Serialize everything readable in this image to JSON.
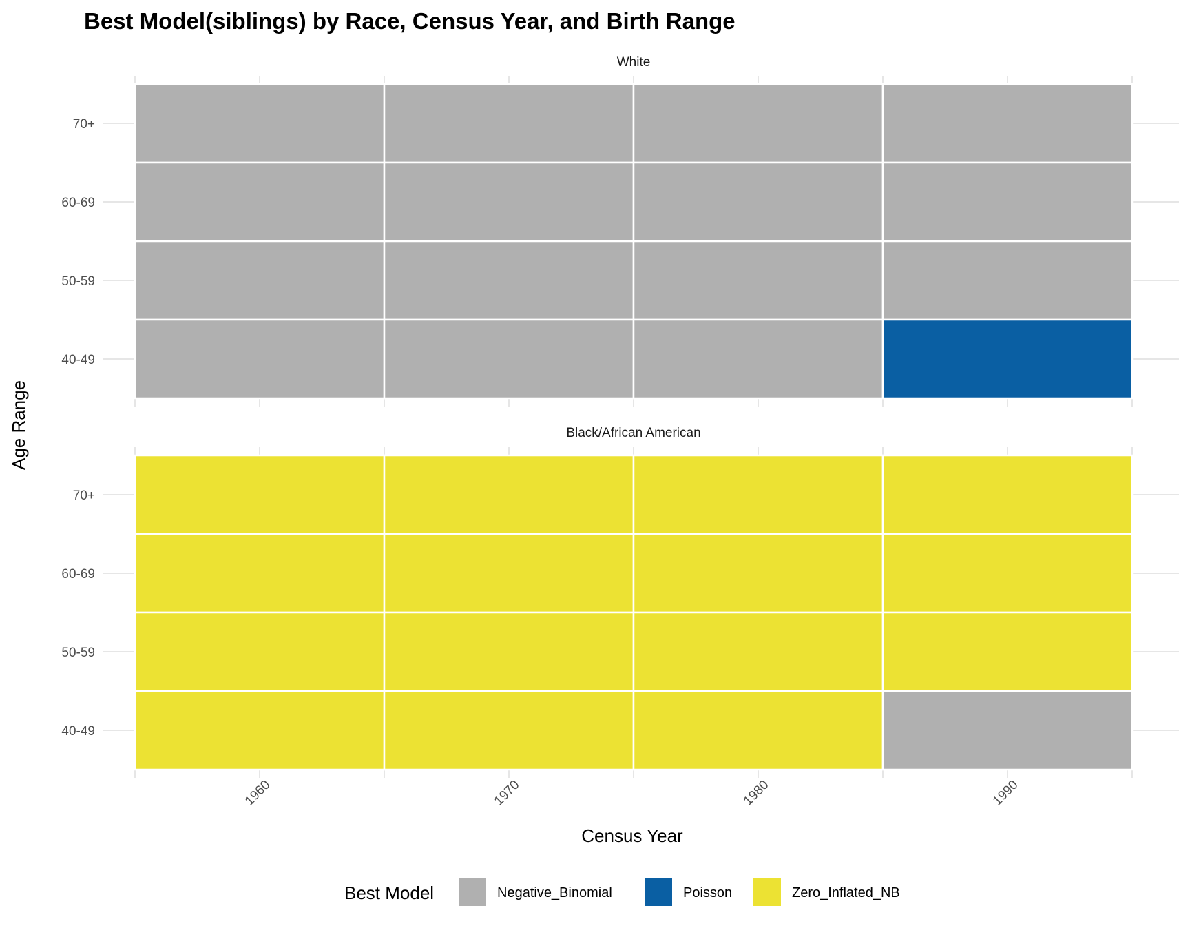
{
  "chart_data": {
    "type": "heatmap",
    "title": "Best Model(siblings) by Race, Census Year, and Birth Range",
    "xlabel": "Census Year",
    "ylabel": "Age Range",
    "x": [
      1960,
      1970,
      1980,
      1990
    ],
    "y": [
      "40-49",
      "50-59",
      "60-69",
      "70+"
    ],
    "legend": {
      "title": "Best Model",
      "position": "bottom",
      "entries": [
        {
          "name": "Negative_Binomial",
          "color": "#b0b0b0"
        },
        {
          "name": "Poisson",
          "color": "#0a5fa3"
        },
        {
          "name": "Zero_Inflated_NB",
          "color": "#ece233"
        }
      ]
    },
    "grid": true,
    "panels": [
      {
        "name": "White",
        "cells": [
          {
            "x": 1960,
            "y": "70+",
            "value": "Negative_Binomial"
          },
          {
            "x": 1970,
            "y": "70+",
            "value": "Negative_Binomial"
          },
          {
            "x": 1980,
            "y": "70+",
            "value": "Negative_Binomial"
          },
          {
            "x": 1990,
            "y": "70+",
            "value": "Negative_Binomial"
          },
          {
            "x": 1960,
            "y": "60-69",
            "value": "Negative_Binomial"
          },
          {
            "x": 1970,
            "y": "60-69",
            "value": "Negative_Binomial"
          },
          {
            "x": 1980,
            "y": "60-69",
            "value": "Negative_Binomial"
          },
          {
            "x": 1990,
            "y": "60-69",
            "value": "Negative_Binomial"
          },
          {
            "x": 1960,
            "y": "50-59",
            "value": "Negative_Binomial"
          },
          {
            "x": 1970,
            "y": "50-59",
            "value": "Negative_Binomial"
          },
          {
            "x": 1980,
            "y": "50-59",
            "value": "Negative_Binomial"
          },
          {
            "x": 1990,
            "y": "50-59",
            "value": "Negative_Binomial"
          },
          {
            "x": 1960,
            "y": "40-49",
            "value": "Negative_Binomial"
          },
          {
            "x": 1970,
            "y": "40-49",
            "value": "Negative_Binomial"
          },
          {
            "x": 1980,
            "y": "40-49",
            "value": "Negative_Binomial"
          },
          {
            "x": 1990,
            "y": "40-49",
            "value": "Poisson"
          }
        ]
      },
      {
        "name": "Black/African American",
        "cells": [
          {
            "x": 1960,
            "y": "70+",
            "value": "Zero_Inflated_NB"
          },
          {
            "x": 1970,
            "y": "70+",
            "value": "Zero_Inflated_NB"
          },
          {
            "x": 1980,
            "y": "70+",
            "value": "Zero_Inflated_NB"
          },
          {
            "x": 1990,
            "y": "70+",
            "value": "Zero_Inflated_NB"
          },
          {
            "x": 1960,
            "y": "60-69",
            "value": "Zero_Inflated_NB"
          },
          {
            "x": 1970,
            "y": "60-69",
            "value": "Zero_Inflated_NB"
          },
          {
            "x": 1980,
            "y": "60-69",
            "value": "Zero_Inflated_NB"
          },
          {
            "x": 1990,
            "y": "60-69",
            "value": "Zero_Inflated_NB"
          },
          {
            "x": 1960,
            "y": "50-59",
            "value": "Zero_Inflated_NB"
          },
          {
            "x": 1970,
            "y": "50-59",
            "value": "Zero_Inflated_NB"
          },
          {
            "x": 1980,
            "y": "50-59",
            "value": "Zero_Inflated_NB"
          },
          {
            "x": 1990,
            "y": "50-59",
            "value": "Zero_Inflated_NB"
          },
          {
            "x": 1960,
            "y": "40-49",
            "value": "Zero_Inflated_NB"
          },
          {
            "x": 1970,
            "y": "40-49",
            "value": "Zero_Inflated_NB"
          },
          {
            "x": 1980,
            "y": "40-49",
            "value": "Zero_Inflated_NB"
          },
          {
            "x": 1990,
            "y": "40-49",
            "value": "Negative_Binomial"
          }
        ]
      }
    ]
  }
}
